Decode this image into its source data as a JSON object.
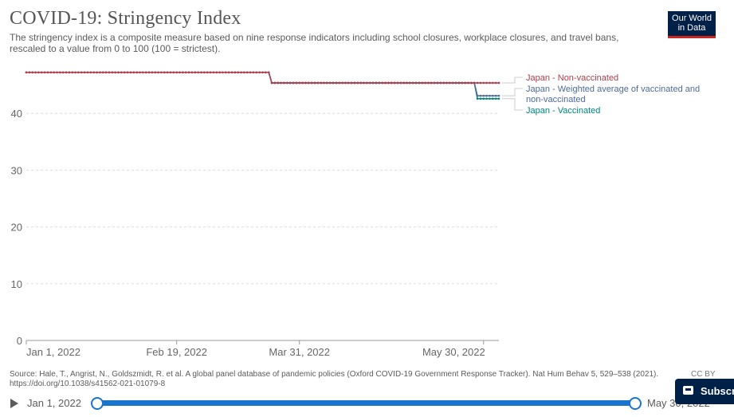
{
  "header": {
    "title": "COVID-19: Stringency Index",
    "subtitle": "The stringency index is a composite measure based on nine response indicators including school closures, workplace closures, and travel bans, rescaled to a value from 0 to 100 (100 = strictest).",
    "logo_line1": "Our World",
    "logo_line2": "in Data"
  },
  "footer": {
    "source": "Source: Hale, T., Angrist, N., Goldszmidt, R. et al. A global panel database of pandemic policies (Oxford COVID-19 Government Response Tracker). Nat Hum Behav 5, 529–538 (2021). https://doi.org/10.1038/s41562-021-01079-8",
    "license": "CC BY"
  },
  "timeline": {
    "start_label": "Jan 1, 2022",
    "end_label": "May 30, 2022"
  },
  "subscribe": {
    "label": "Subscribe"
  },
  "colors": {
    "non_vaccinated": "#b13d4a",
    "weighted": "#4c6a9c",
    "vaccinated": "#00847e",
    "grid": "#dddddd",
    "axis_text": "#666666"
  },
  "chart_data": {
    "type": "line",
    "title": "COVID-19: Stringency Index",
    "xlabel": "",
    "ylabel": "",
    "ylim": [
      0,
      50
    ],
    "yticks": [
      0,
      10,
      20,
      30,
      40
    ],
    "xlim": [
      "2022-01-01",
      "2022-06-04"
    ],
    "xticks": [
      {
        "date": "2022-01-01",
        "label": "Jan 1, 2022"
      },
      {
        "date": "2022-02-19",
        "label": "Feb 19, 2022"
      },
      {
        "date": "2022-03-31",
        "label": "Mar 31, 2022"
      },
      {
        "date": "2022-05-30",
        "label": "May 30, 2022"
      }
    ],
    "grid": true,
    "legend": "right",
    "series": [
      {
        "name": "Japan - Non-vaccinated",
        "color": "#b13d4a",
        "points": [
          {
            "x": "2022-01-01",
            "y": 47.22
          },
          {
            "x": "2022-03-21",
            "y": 47.22
          },
          {
            "x": "2022-03-22",
            "y": 45.37
          },
          {
            "x": "2022-06-04",
            "y": 45.37
          }
        ]
      },
      {
        "name": "Japan - Weighted average of vaccinated and non-vaccinated",
        "color": "#4c6a9c",
        "points": [
          {
            "x": "2022-01-01",
            "y": 47.22
          },
          {
            "x": "2022-03-21",
            "y": 47.22
          },
          {
            "x": "2022-03-22",
            "y": 45.37
          },
          {
            "x": "2022-05-27",
            "y": 45.37
          },
          {
            "x": "2022-05-28",
            "y": 43.1
          },
          {
            "x": "2022-06-04",
            "y": 43.1
          }
        ]
      },
      {
        "name": "Japan - Vaccinated",
        "color": "#00847e",
        "points": [
          {
            "x": "2022-01-01",
            "y": 47.22
          },
          {
            "x": "2022-03-21",
            "y": 47.22
          },
          {
            "x": "2022-03-22",
            "y": 45.37
          },
          {
            "x": "2022-05-27",
            "y": 45.37
          },
          {
            "x": "2022-05-28",
            "y": 42.59
          },
          {
            "x": "2022-06-04",
            "y": 42.59
          }
        ]
      }
    ]
  }
}
